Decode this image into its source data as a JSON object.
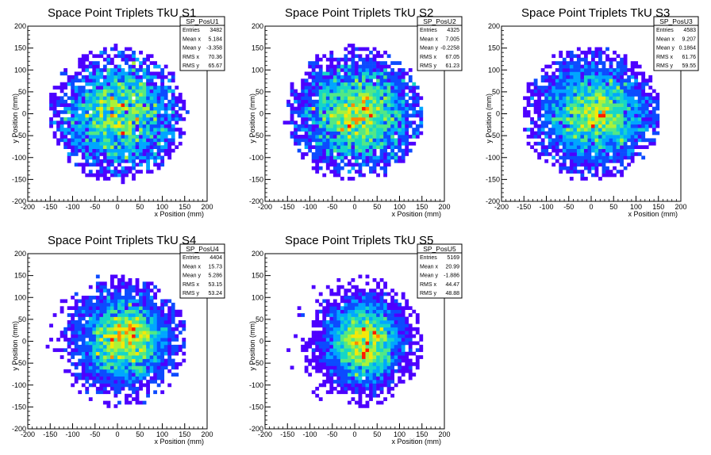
{
  "chart_data": [
    {
      "type": "heatmap",
      "title": "Space Point Triplets TkU S1",
      "xlabel": "x Position (mm)",
      "ylabel": "y Position (mm)",
      "xlim": [
        -200,
        200
      ],
      "ylim": [
        -200,
        200
      ],
      "xticks": [
        -200,
        -150,
        -100,
        -50,
        0,
        50,
        100,
        150,
        200
      ],
      "yticks": [
        -200,
        -150,
        -100,
        -50,
        0,
        50,
        100,
        150,
        200
      ],
      "stats": {
        "name": "SP_PosU1",
        "rows": [
          {
            "label": "Entries",
            "value": "3482"
          },
          {
            "label": "Mean x",
            "value": "5.184"
          },
          {
            "label": "Mean y",
            "value": "-3.358"
          },
          {
            "label": "RMS x",
            "value": "70.36"
          },
          {
            "label": "RMS y",
            "value": "65.67"
          }
        ]
      },
      "mean_x": 5.184,
      "mean_y": -3.358,
      "rms_x": 70.36,
      "rms_y": 65.67,
      "entries": 3482
    },
    {
      "type": "heatmap",
      "title": "Space Point Triplets TkU S2",
      "xlabel": "x Position (mm)",
      "ylabel": "y Position (mm)",
      "xlim": [
        -200,
        200
      ],
      "ylim": [
        -200,
        200
      ],
      "xticks": [
        -200,
        -150,
        -100,
        -50,
        0,
        50,
        100,
        150,
        200
      ],
      "yticks": [
        -200,
        -150,
        -100,
        -50,
        0,
        50,
        100,
        150,
        200
      ],
      "stats": {
        "name": "SP_PosU2",
        "rows": [
          {
            "label": "Entries",
            "value": "4325"
          },
          {
            "label": "Mean x",
            "value": "7.005"
          },
          {
            "label": "Mean y",
            "value": "-0.2258"
          },
          {
            "label": "RMS x",
            "value": "67.05"
          },
          {
            "label": "RMS y",
            "value": "61.23"
          }
        ]
      },
      "mean_x": 7.005,
      "mean_y": -0.2258,
      "rms_x": 67.05,
      "rms_y": 61.23,
      "entries": 4325
    },
    {
      "type": "heatmap",
      "title": "Space Point Triplets TkU S3",
      "xlabel": "x Position (mm)",
      "ylabel": "y Position (mm)",
      "xlim": [
        -200,
        200
      ],
      "ylim": [
        -200,
        200
      ],
      "xticks": [
        -200,
        -150,
        -100,
        -50,
        0,
        50,
        100,
        150,
        200
      ],
      "yticks": [
        -200,
        -150,
        -100,
        -50,
        0,
        50,
        100,
        150,
        200
      ],
      "stats": {
        "name": "SP_PosU3",
        "rows": [
          {
            "label": "Entries",
            "value": "4583"
          },
          {
            "label": "Mean x",
            "value": "9.207"
          },
          {
            "label": "Mean y",
            "value": "0.1864"
          },
          {
            "label": "RMS x",
            "value": "61.76"
          },
          {
            "label": "RMS y",
            "value": "59.55"
          }
        ]
      },
      "mean_x": 9.207,
      "mean_y": 0.1864,
      "rms_x": 61.76,
      "rms_y": 59.55,
      "entries": 4583
    },
    {
      "type": "heatmap",
      "title": "Space Point Triplets TkU S4",
      "xlabel": "x Position (mm)",
      "ylabel": "y Position (mm)",
      "xlim": [
        -200,
        200
      ],
      "ylim": [
        -200,
        200
      ],
      "xticks": [
        -200,
        -150,
        -100,
        -50,
        0,
        50,
        100,
        150,
        200
      ],
      "yticks": [
        -200,
        -150,
        -100,
        -50,
        0,
        50,
        100,
        150,
        200
      ],
      "stats": {
        "name": "SP_PosU4",
        "rows": [
          {
            "label": "Entries",
            "value": "4404"
          },
          {
            "label": "Mean x",
            "value": "15.73"
          },
          {
            "label": "Mean y",
            "value": "5.286"
          },
          {
            "label": "RMS x",
            "value": "53.15"
          },
          {
            "label": "RMS y",
            "value": "53.24"
          }
        ]
      },
      "mean_x": 15.73,
      "mean_y": 5.286,
      "rms_x": 53.15,
      "rms_y": 53.24,
      "entries": 4404
    },
    {
      "type": "heatmap",
      "title": "Space Point Triplets TkU S5",
      "xlabel": "x Position (mm)",
      "ylabel": "y Position (mm)",
      "xlim": [
        -200,
        200
      ],
      "ylim": [
        -200,
        200
      ],
      "xticks": [
        -200,
        -150,
        -100,
        -50,
        0,
        50,
        100,
        150,
        200
      ],
      "yticks": [
        -200,
        -150,
        -100,
        -50,
        0,
        50,
        100,
        150,
        200
      ],
      "stats": {
        "name": "SP_PosU5",
        "rows": [
          {
            "label": "Entries",
            "value": "5169"
          },
          {
            "label": "Mean x",
            "value": "20.99"
          },
          {
            "label": "Mean y",
            "value": "-1.886"
          },
          {
            "label": "RMS x",
            "value": "44.47"
          },
          {
            "label": "RMS y",
            "value": "48.88"
          }
        ]
      },
      "mean_x": 20.99,
      "mean_y": -1.886,
      "rms_x": 44.47,
      "rms_y": 48.88,
      "entries": 5169
    }
  ],
  "colors": {
    "palette": [
      "#4d00ff",
      "#0c4bff",
      "#00a6ff",
      "#15d6c8",
      "#52e885",
      "#aaf23a",
      "#f3e80a",
      "#ff8a00",
      "#ff1a00"
    ],
    "axis": "#000000",
    "background": "#ffffff"
  }
}
